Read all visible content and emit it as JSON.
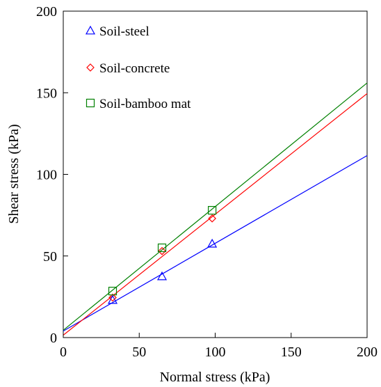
{
  "chart_data": {
    "type": "scatter",
    "xlabel": "Normal stress (kPa)",
    "ylabel": "Shear stress (kPa)",
    "xlim": [
      0,
      200
    ],
    "ylim": [
      0,
      200
    ],
    "xticks": [
      "0",
      "50",
      "100",
      "150",
      "200"
    ],
    "yticks": [
      "0",
      "50",
      "100",
      "150",
      "200"
    ],
    "legend_position": "top-left",
    "grid": false,
    "series": [
      {
        "name": "Soil-steel",
        "marker": "triangle",
        "color": "#0000ff",
        "x": [
          32.5,
          65,
          98
        ],
        "y": [
          23,
          37.5,
          57.5
        ],
        "fit": {
          "x": [
            0,
            200
          ],
          "y": [
            4,
            111.5
          ]
        }
      },
      {
        "name": "Soil-concrete",
        "marker": "diamond",
        "color": "#ff0000",
        "x": [
          32.5,
          65,
          98
        ],
        "y": [
          24.5,
          53,
          73
        ],
        "fit": {
          "x": [
            0,
            200
          ],
          "y": [
            1.5,
            149.5
          ]
        }
      },
      {
        "name": "Soil-bamboo mat",
        "marker": "square",
        "color": "#008000",
        "x": [
          32.5,
          65,
          98
        ],
        "y": [
          28.5,
          55,
          78
        ],
        "fit": {
          "x": [
            0,
            200
          ],
          "y": [
            4.5,
            156
          ]
        }
      }
    ]
  }
}
